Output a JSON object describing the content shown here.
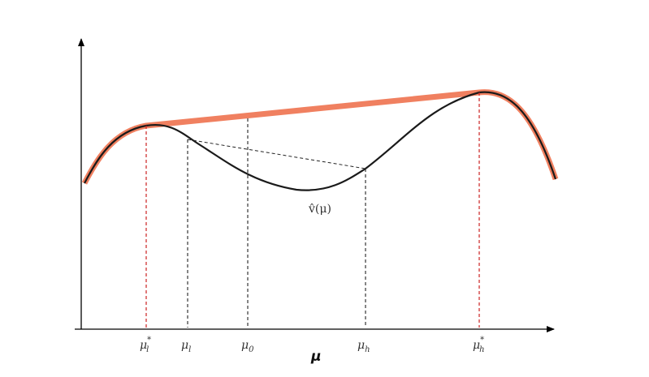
{
  "figure": {
    "x_axis_title": "μ",
    "curve_label": "v̂(μ)",
    "tick_labels": [
      {
        "id": "mu-l-star",
        "base": "μ",
        "sub": "l",
        "sup": "*"
      },
      {
        "id": "mu-l",
        "base": "μ",
        "sub": "l",
        "sup": ""
      },
      {
        "id": "mu-0",
        "base": "μ",
        "sub": "0",
        "sup": ""
      },
      {
        "id": "mu-h",
        "base": "μ",
        "sub": "h",
        "sup": ""
      },
      {
        "id": "mu-h-star",
        "base": "μ",
        "sub": "h",
        "sup": "*"
      }
    ]
  },
  "colors": {
    "axis": "#000000",
    "curve": "#1a1a1a",
    "concave_hull": "#f08060",
    "red_guides": "#cc2222",
    "black_guides": "#222222"
  }
}
